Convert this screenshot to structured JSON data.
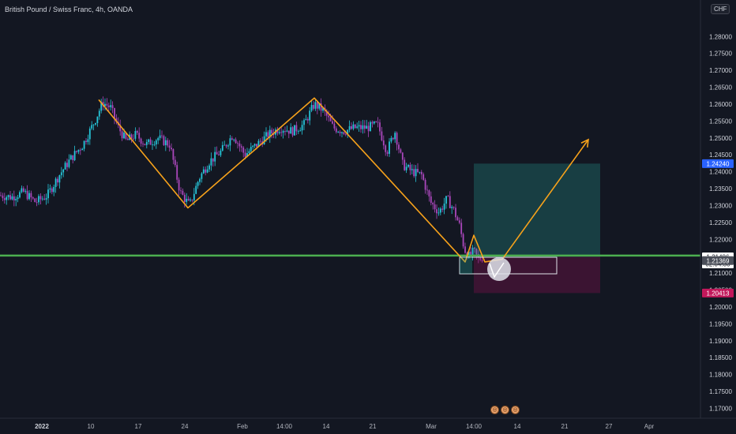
{
  "header": {
    "symbol": "British Pound / Swiss Franc, 4h, OANDA",
    "currency": "CHF"
  },
  "chart_data": {
    "type": "candlestick",
    "ylim": [
      1.168,
      1.288
    ],
    "y_ticks": [
      "1.28000",
      "1.27500",
      "1.27000",
      "1.26500",
      "1.26000",
      "1.25500",
      "1.25000",
      "1.24500",
      "1.24000",
      "1.23500",
      "1.23000",
      "1.22500",
      "1.22000",
      "1.21500",
      "1.21000",
      "1.20500",
      "1.20000",
      "1.19500",
      "1.19000",
      "1.18500",
      "1.18000",
      "1.17500",
      "1.17000"
    ],
    "x_ticks": [
      {
        "label": "2022",
        "bold": true
      },
      {
        "label": "10"
      },
      {
        "label": "17"
      },
      {
        "label": "24"
      },
      {
        "label": "Feb"
      },
      {
        "label": "14:00"
      },
      {
        "label": "14"
      },
      {
        "label": "21"
      },
      {
        "label": "Mar"
      },
      {
        "label": "14:00"
      },
      {
        "label": "14"
      },
      {
        "label": "21"
      },
      {
        "label": "27"
      },
      {
        "label": "Apr"
      }
    ],
    "price_path": [
      [
        0,
        1.233
      ],
      [
        15,
        1.2325
      ],
      [
        30,
        1.234
      ],
      [
        45,
        1.231
      ],
      [
        60,
        1.233
      ],
      [
        75,
        1.239
      ],
      [
        90,
        1.244
      ],
      [
        105,
        1.248
      ],
      [
        120,
        1.255
      ],
      [
        130,
        1.2605
      ],
      [
        140,
        1.259
      ],
      [
        150,
        1.253
      ],
      [
        160,
        1.249
      ],
      [
        172,
        1.251
      ],
      [
        185,
        1.248
      ],
      [
        200,
        1.25
      ],
      [
        215,
        1.248
      ],
      [
        228,
        1.234
      ],
      [
        240,
        1.23
      ],
      [
        252,
        1.238
      ],
      [
        265,
        1.243
      ],
      [
        280,
        1.246
      ],
      [
        295,
        1.251
      ],
      [
        310,
        1.245
      ],
      [
        325,
        1.248
      ],
      [
        340,
        1.251
      ],
      [
        355,
        1.253
      ],
      [
        370,
        1.252
      ],
      [
        385,
        1.254
      ],
      [
        398,
        1.26
      ],
      [
        410,
        1.258
      ],
      [
        422,
        1.253
      ],
      [
        435,
        1.252
      ],
      [
        450,
        1.253
      ],
      [
        465,
        1.253
      ],
      [
        478,
        1.254
      ],
      [
        490,
        1.246
      ],
      [
        500,
        1.252
      ],
      [
        510,
        1.242
      ],
      [
        522,
        1.24
      ],
      [
        534,
        1.239
      ],
      [
        545,
        1.231
      ],
      [
        556,
        1.228
      ],
      [
        566,
        1.232
      ],
      [
        574,
        1.229
      ],
      [
        582,
        1.224
      ],
      [
        588,
        1.217
      ],
      [
        594,
        1.215
      ],
      [
        600,
        1.2165
      ],
      [
        606,
        1.214
      ],
      [
        612,
        1.2148
      ]
    ],
    "pattern_lines": [
      [
        [
          125,
          1.2613
        ],
        [
          238,
          1.2293
        ],
        [
          398,
          1.2618
        ],
        [
          589,
          1.2133
        ],
        [
          600,
          1.2212
        ],
        [
          614,
          1.2133
        ],
        [
          636,
          1.2141
        ],
        [
          745,
          1.2495
        ]
      ]
    ],
    "support_line": 1.2152,
    "target_zone": {
      "start_x_index": 600,
      "end_x_index": 760,
      "top": 1.2424,
      "bottom": 1.2148
    },
    "stop_zone": {
      "start_x_index": 600,
      "end_x_index": 760,
      "top": 1.2148,
      "bottom": 1.2041
    },
    "price_labels": [
      {
        "value": "1.24240",
        "color": "#2962ff",
        "y": 1.2424
      },
      {
        "value": "1.21486",
        "sub": "02:04:30",
        "color": "#ffffff",
        "y": 1.2148
      },
      {
        "value": "1.21369",
        "color": "#4a4e59",
        "y": 1.2137
      },
      {
        "value": "1.20413",
        "color": "#c2185b",
        "y": 1.2041
      }
    ],
    "grid": false
  }
}
